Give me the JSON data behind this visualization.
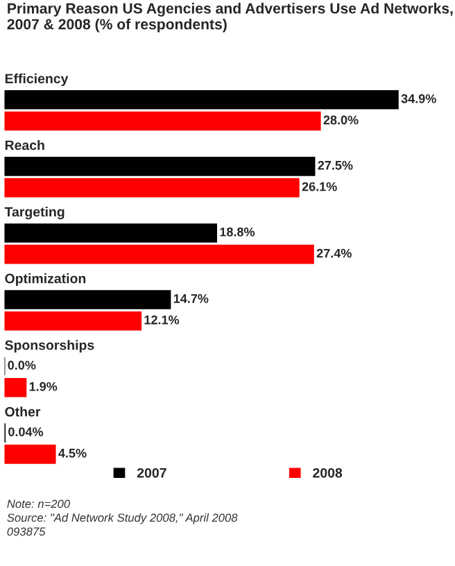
{
  "chart_data": {
    "type": "bar",
    "orientation": "horizontal",
    "title": "Primary Reason US Agencies and Advertisers Use Ad Networks, 2007 & 2008 (% of respondents)",
    "categories": [
      "Efficiency",
      "Reach",
      "Targeting",
      "Optimization",
      "Sponsorships",
      "Other"
    ],
    "series": [
      {
        "name": "2007",
        "color": "#000000",
        "values": [
          34.9,
          27.5,
          18.8,
          14.7,
          0.0,
          0.04
        ],
        "value_labels": [
          "34.9%",
          "27.5%",
          "18.8%",
          "14.7%",
          "0.0%",
          "0.04%"
        ]
      },
      {
        "name": "2008",
        "color": "#ff0000",
        "values": [
          28.0,
          26.1,
          27.4,
          12.1,
          1.9,
          4.5
        ],
        "value_labels": [
          "28.0%",
          "26.1%",
          "27.4%",
          "12.1%",
          "1.9%",
          "4.5%"
        ]
      }
    ],
    "legend": "bottom",
    "tick_labels": false,
    "annotations": [
      "Note: n=200",
      "Source: \"Ad Network Study 2008,\" April 2008",
      "093875"
    ]
  }
}
